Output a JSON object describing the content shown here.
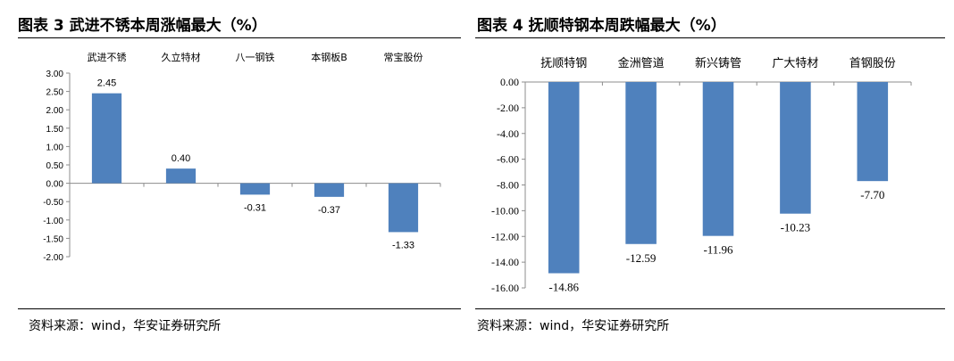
{
  "chart_data": [
    {
      "type": "bar",
      "title": "图表 3 武进不锈本周涨幅最大（%）",
      "categories": [
        "武进不锈",
        "久立特材",
        "八一钢铁",
        "本钢板B",
        "常宝股份"
      ],
      "values": [
        2.45,
        0.4,
        -0.31,
        -0.37,
        -1.33
      ],
      "value_labels": [
        "2.45",
        "0.40",
        "-0.31",
        "-0.37",
        "-1.33"
      ],
      "yticks": [
        "3.00",
        "2.50",
        "2.00",
        "1.50",
        "1.00",
        "0.50",
        "0.00",
        "-0.50",
        "-1.00",
        "-1.50",
        "-2.00"
      ],
      "ylim": [
        -2.0,
        3.0
      ],
      "xlabel": "",
      "ylabel": "",
      "category_axis_position": "top",
      "grid": false,
      "bar_color": "#4F81BD",
      "source": "资料来源：wind，华安证券研究所"
    },
    {
      "type": "bar",
      "title": "图表 4 抚顺特钢本周跌幅最大（%）",
      "categories": [
        "抚顺特钢",
        "金洲管道",
        "新兴铸管",
        "广大特材",
        "首钢股份"
      ],
      "values": [
        -14.86,
        -12.59,
        -11.96,
        -10.23,
        -7.7
      ],
      "value_labels": [
        "-14.86",
        "-12.59",
        "-11.96",
        "-10.23",
        "-7.70"
      ],
      "yticks": [
        "0.00",
        "-2.00",
        "-4.00",
        "-6.00",
        "-8.00",
        "-10.00",
        "-12.00",
        "-14.00",
        "-16.00"
      ],
      "ylim": [
        -16.0,
        0.0
      ],
      "xlabel": "",
      "ylabel": "",
      "category_axis_position": "top",
      "grid": false,
      "bar_color": "#4F81BD",
      "source": "资料来源：wind，华安证券研究所"
    }
  ]
}
